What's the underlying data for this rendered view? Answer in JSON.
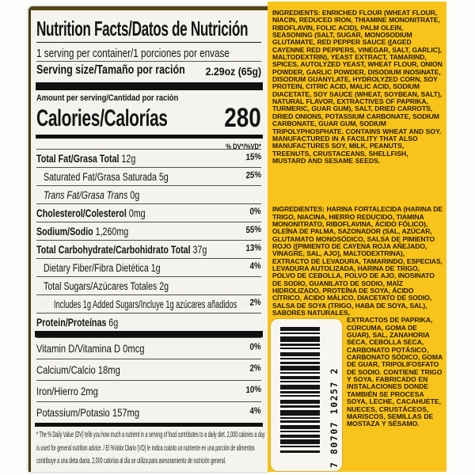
{
  "nutrition_panel": {
    "title": "Nutrition Facts/Datos de Nutrición",
    "servings_per_container": "1 serving per container/1 porciones por envase",
    "serving_size_label": "Serving size/Tamaño por ración",
    "serving_size_value": "2.29oz (65g)",
    "amount_per_serving": "Amount per serving/Cantidad por ración",
    "calories_label": "Calories/Calorías",
    "calories_value": "280",
    "dv_header": "% DV*/%VD*",
    "rows": [
      {
        "name": "Total Fat/Grasa Total",
        "value": "12g",
        "dv": "15%"
      },
      {
        "name": "Saturated Fat/Grasa Saturada",
        "value": "5g",
        "dv": "25%"
      },
      {
        "name": "Trans Fat/Grasa Trans",
        "value": "0g",
        "dv": ""
      },
      {
        "name": "Cholesterol/Colesterol",
        "value": "0mg",
        "dv": "0%"
      },
      {
        "name": "Sodium/Sodio",
        "value": "1,260mg",
        "dv": "55%"
      },
      {
        "name": "Total Carbohydrate/Carbohidrato Total",
        "value": "37g",
        "dv": "13%"
      },
      {
        "name": "Dietary Fiber/Fibra Dietética",
        "value": "1g",
        "dv": "4%"
      },
      {
        "name": "Total Sugars/Azúcares Totales",
        "value": "2g",
        "dv": ""
      },
      {
        "name": "",
        "value": "Includes 1g Added Sugars/Incluye 1g azúcares añadidos",
        "dv": "2%"
      },
      {
        "name": "Protein/Proteínas",
        "value": "6g",
        "dv": ""
      }
    ],
    "vitamin_rows": [
      {
        "name": "Vitamin D/Vitamina D",
        "value": "0mcg",
        "dv": "0%"
      },
      {
        "name": "Calcium/Calcio",
        "value": "18mg",
        "dv": "2%"
      },
      {
        "name": "Iron/Hierro",
        "value": "2mg",
        "dv": "10%"
      },
      {
        "name": "Potassium/Potasio",
        "value": "157mg",
        "dv": "4%"
      }
    ],
    "footnote": "* The % Daily Value (DV) tells you how much a nutrient in a serving of food contributes to a daily diet. 2,000 calories a day is used for general nutrition advice. / El %Valor Diario (VD) le indica cuánto un nutriente en una porción de alimentos contribuye a una dieta diaria. 2,000 calorías al día se utiliza para asesoramiento de nutrición general."
  },
  "ingredients_panel": {
    "english_main": "INGREDIENTS: ENRICHED FLOUR (WHEAT FLOUR, NIACIN, REDUCED IRON, THIAMINE MONONITRATE, RIBOFLAVIN, FOLIC ACID), PALM OLEIN, SEASONING (SALT, SUGAR, MONOSODIUM GLUTAMATE, RED PEPPER SAUCE ([AGED CAYENNE RED PEPPERS, VINEGAR, SALT, GARLIC], MALTODEXTRIN), YEAST EXTRACT, TAMARIND, SPICES, AUTOLYZED YEAST, WHEAT FLOUR, ONION POWDER, GARLIC POWDER, DISODIUM INOSINATE, DISODIUM GUANYLATE, HYDROLYZED CORN, SOY PROTEIN, CITRIC ACID, MALIC ACID, SODIUM DIACETATE, SOY SAUCE (WHEAT, SOYBEAN, SALT), NATURAL FLAVOR, EXTRACTIVES OF PAPRIKA, TURMERIC, GUAR GUM), SALT, DRIED CARROTS, DRIED ONIONS, POTASSIUM CARBONATE, SODIUM CARBONATE, GUAR GUM, SODIUM TRIPOLYPHOSPHATE. ",
    "english_allergen": "CONTAINS WHEAT AND SOY. MANUFACTURED IN A FACILITY THAT ALSO MANUFACTURES SOY, MILK, PEANUTS, TREENUTS, CRUSTACEANS, SHELLFISH, MUSTARD AND SESAME SEEDS.",
    "spanish_part1": "INGREDIENTES: HARINA FORTALECIDA (HARINA DE TRIGO, NIACINA, HIERRO REDUCIDO, TIAMINA MONONITRATO, RIBOFLAVINA, ÁCIDO FÓLICO), OLEÍNA DE PALMA, SAZONADOR (SAL, AZÚCAR, GLUTAMATO MONOSÓDICO, SALSA DE PIMIENTO ROJO ([PIMIENTO DE CAYENA ROJA AÑEJADO, VINAGRE, SAL, AJO], MALTODEXTRINA), EXTRACTO DE LEVADURA, TAMARINDO, ESPECIAS, LEVADURA AUTOLIZADA, HARINA DE TRIGO, POLVO DE CEBOLLA, POLVO DE AJO, INOSINATO DE SODIO, GUANILATO DE SODIO, MAÍZ HIDROLIZADO, PROTEÍNA DE SOYA, ÁCIDO CÍTRICO, ÁCIDO MÁLICO, DIACETATO DE SODIO, SALSA DE SOYA (TRIGO, HABA DE SOYA, SAL), SABORES NATURALES,",
    "spanish_part2": "EXTRACTOS DE PAPRIKA, CÚRCUMA, GOMA DE GUAR), SAL, ZANAHORIA SECA, CEBOLLA SECA, CARBONATO POTÁSICO, CARBONATO SÓDICO, GOMA DE GUAR, TRIPOLIFOSFATO DE SODIO. ",
    "spanish_allergen": "CONTIENE TRIGO Y SOYA. FABRICADO EN INSTALACIONES DONDE TAMBIÉN SE PROCESA SOYA, LECHE, CACAHUETE, NUECES, CRUSTÁCEOS, MARISCOS, SEMILLAS DE MOSTAZA Y SÉSAMO."
  },
  "barcode": {
    "digits": "7 80707 10257 2"
  },
  "colors": {
    "panel_yellow": "#f8c31a",
    "label_bg": "#f5f3ed",
    "ink": "#141414",
    "label_edge_brown": "#554416"
  }
}
